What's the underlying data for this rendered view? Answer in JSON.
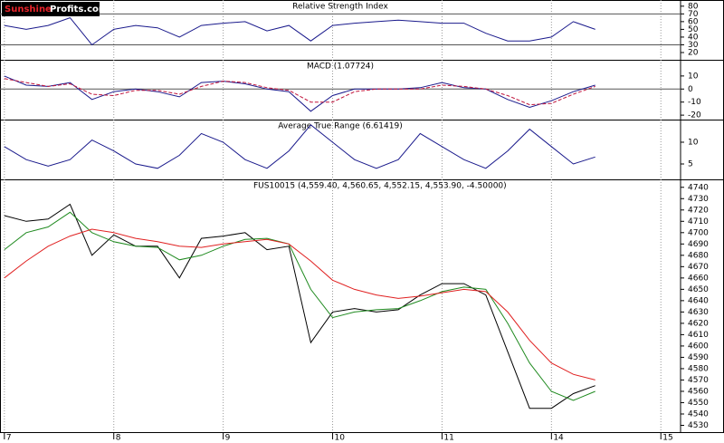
{
  "logo": {
    "part1": "Sunshine",
    "part2": "Profits.com"
  },
  "chart_data": [
    {
      "type": "line",
      "title": "Relative Strength Index",
      "x": [
        0,
        0.2,
        0.4,
        0.6,
        0.8,
        1.0,
        1.2,
        1.4,
        1.6,
        1.8,
        2.0,
        2.2,
        2.4,
        2.6,
        2.8,
        3.0,
        3.2,
        3.4,
        3.6,
        3.8,
        4.0,
        4.2,
        4.4,
        4.6,
        4.8,
        5.0,
        5.2,
        5.4
      ],
      "xlim": [
        -0.04,
        6.18
      ],
      "ylim": [
        10.6,
        88
      ],
      "yticks": [
        20,
        30,
        40,
        50,
        60,
        70,
        80
      ],
      "hlines": [
        70,
        30
      ],
      "series": [
        {
          "color": "#1a1a8c",
          "values": [
            55,
            50,
            55,
            65,
            30,
            50,
            55,
            52,
            40,
            55,
            58,
            60,
            48,
            55,
            35,
            55,
            58,
            60,
            62,
            60,
            58,
            58,
            45,
            35,
            35,
            40,
            60,
            50
          ]
        }
      ]
    },
    {
      "type": "line",
      "title": "MACD (1.07724)",
      "x": [
        0,
        0.2,
        0.4,
        0.6,
        0.8,
        1.0,
        1.2,
        1.4,
        1.6,
        1.8,
        2.0,
        2.2,
        2.4,
        2.6,
        2.8,
        3.0,
        3.2,
        3.4,
        3.6,
        3.8,
        4.0,
        4.2,
        4.4,
        4.6,
        4.8,
        5.0,
        5.2,
        5.4
      ],
      "xlim": [
        -0.04,
        6.18
      ],
      "ylim": [
        -23.4,
        22.4
      ],
      "yticks": [
        -20,
        -10,
        0,
        10
      ],
      "hlines": [
        0
      ],
      "series": [
        {
          "color": "#1a1a8c",
          "values": [
            10,
            3,
            2,
            5,
            -8,
            -2,
            0,
            -2,
            -6,
            5,
            6,
            4,
            0,
            -2,
            -17,
            -5,
            0,
            0,
            0,
            1,
            5,
            1,
            0,
            -8,
            -14,
            -9,
            -2,
            3
          ]
        },
        {
          "color": "#c0143c",
          "dash": true,
          "values": [
            8,
            5,
            2,
            4,
            -4,
            -5,
            -1,
            -1,
            -4,
            2,
            6,
            5,
            1,
            -1,
            -10,
            -10,
            -2,
            0,
            0,
            0,
            3,
            2,
            0,
            -5,
            -12,
            -11,
            -4,
            2
          ]
        }
      ]
    },
    {
      "type": "line",
      "title": "Average True Range (6.61419)",
      "x": [
        0,
        0.2,
        0.4,
        0.6,
        0.8,
        1.0,
        1.2,
        1.4,
        1.6,
        1.8,
        2.0,
        2.2,
        2.4,
        2.6,
        2.8,
        3.0,
        3.2,
        3.4,
        3.6,
        3.8,
        4.0,
        4.2,
        4.4,
        4.6,
        4.8,
        5.0,
        5.2,
        5.4
      ],
      "xlim": [
        -0.04,
        6.18
      ],
      "ylim": [
        1.46,
        15.2
      ],
      "yticks": [
        5,
        10
      ],
      "hlines": [],
      "series": [
        {
          "color": "#1a1a8c",
          "values": [
            9,
            6,
            4.5,
            6,
            10.5,
            8,
            5,
            4,
            7,
            12,
            10,
            6,
            4,
            8,
            14,
            10,
            6,
            4,
            6,
            12,
            9,
            6,
            4,
            8,
            13,
            9,
            5,
            6.6
          ]
        }
      ]
    },
    {
      "type": "line",
      "title": "FUS10015 (4,559.40, 4,560.65, 4,552.15, 4,553.90, -4.50000)",
      "x": [
        0,
        0.2,
        0.4,
        0.6,
        0.8,
        1.0,
        1.2,
        1.4,
        1.6,
        1.8,
        2.0,
        2.2,
        2.4,
        2.6,
        2.8,
        3.0,
        3.2,
        3.4,
        3.6,
        3.8,
        4.0,
        4.2,
        4.4,
        4.6,
        4.8,
        5.0,
        5.2,
        5.4
      ],
      "xlim": [
        -0.04,
        6.18
      ],
      "ylim": [
        4524,
        4747
      ],
      "yticks": [
        4530,
        4540,
        4550,
        4560,
        4570,
        4580,
        4590,
        4600,
        4610,
        4620,
        4630,
        4640,
        4650,
        4660,
        4670,
        4680,
        4690,
        4700,
        4710,
        4720,
        4730,
        4740
      ],
      "xticks": [
        {
          "value": 0,
          "label": "7"
        },
        {
          "value": 1,
          "label": "8"
        },
        {
          "value": 2,
          "label": "9"
        },
        {
          "value": 3,
          "label": "10"
        },
        {
          "value": 4,
          "label": "11"
        },
        {
          "value": 5,
          "label": "14"
        },
        {
          "value": 6,
          "label": "15"
        }
      ],
      "hlines": [],
      "series": [
        {
          "color": "#000000",
          "values": [
            4715,
            4710,
            4712,
            4725,
            4680,
            4698,
            4688,
            4688,
            4660,
            4695,
            4697,
            4700,
            4685,
            4688,
            4603,
            4630,
            4633,
            4630,
            4632,
            4645,
            4655,
            4655,
            4645,
            4595,
            4545,
            4545,
            4558,
            4565
          ]
        },
        {
          "color": "#1f8a1f",
          "values": [
            4685,
            4700,
            4705,
            4718,
            4700,
            4692,
            4688,
            4687,
            4676,
            4680,
            4688,
            4694,
            4695,
            4690,
            4650,
            4625,
            4630,
            4632,
            4633,
            4640,
            4648,
            4652,
            4650,
            4620,
            4585,
            4560,
            4552,
            4560
          ]
        },
        {
          "color": "#e02020",
          "values": [
            4660,
            4675,
            4688,
            4697,
            4703,
            4700,
            4695,
            4692,
            4688,
            4687,
            4690,
            4692,
            4694,
            4690,
            4675,
            4658,
            4650,
            4645,
            4642,
            4644,
            4647,
            4650,
            4648,
            4630,
            4605,
            4585,
            4575,
            4570
          ]
        }
      ]
    }
  ]
}
